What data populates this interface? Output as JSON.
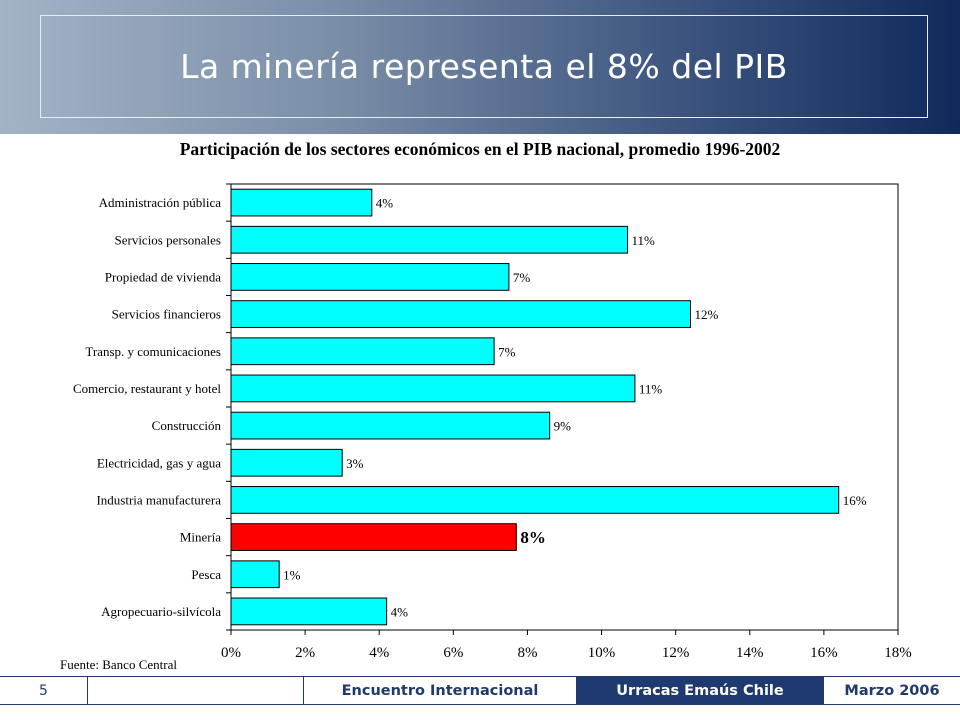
{
  "slide": {
    "title": "La minería representa el 8% del PIB",
    "page_number": "5"
  },
  "footer": {
    "event": "Encuentro Internacional",
    "organization": "Urracas Emaús Chile",
    "date": "Marzo 2006"
  },
  "chart_data": {
    "type": "bar",
    "orientation": "horizontal",
    "title": "Participación de los sectores económicos en el PIB nacional, promedio 1996-2002",
    "source": "Fuente: Banco Central",
    "categories": [
      "Administración pública",
      "Servicios personales",
      "Propiedad de vivienda",
      "Servicios financieros",
      "Transp. y comunicaciones",
      "Comercio, restaurant y hotel",
      "Construcción",
      "Electricidad, gas y agua",
      "Industria manufacturera",
      "Minería",
      "Pesca",
      "Agropecuario-silvícola"
    ],
    "values": [
      3.8,
      10.7,
      7.5,
      12.4,
      7.1,
      10.9,
      8.6,
      3.0,
      16.4,
      7.7,
      1.3,
      4.2
    ],
    "labels": [
      "4%",
      "11%",
      "7%",
      "12%",
      "7%",
      "11%",
      "9%",
      "3%",
      "16%",
      "8%",
      "1%",
      "4%"
    ],
    "highlight": "Minería",
    "xlim": [
      0,
      18
    ],
    "xticks": [
      "0%",
      "2%",
      "4%",
      "6%",
      "8%",
      "10%",
      "12%",
      "14%",
      "16%",
      "18%"
    ],
    "colors": {
      "bar": "#00ffff",
      "highlight": "#ff0000"
    },
    "grid": false,
    "legend": "none"
  }
}
